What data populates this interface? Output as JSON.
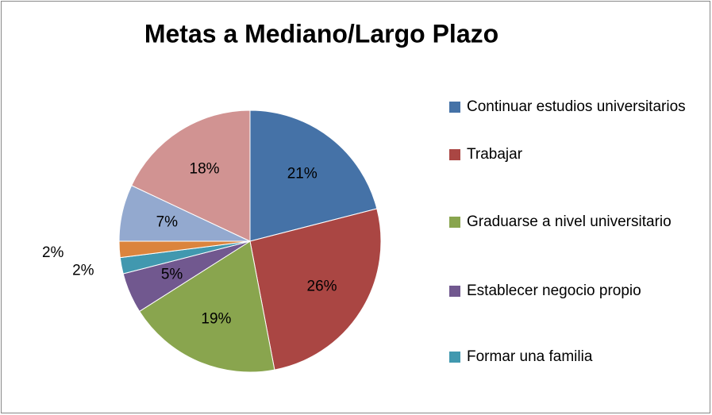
{
  "chart_data": {
    "type": "pie",
    "title": "Metas a Mediano/Largo Plazo",
    "categories": [
      "Continuar estudios universitarios",
      "Trabajar",
      "Graduarse a nivel universitario",
      "Establecer negocio propio",
      "Formar una familia",
      null,
      null,
      null
    ],
    "values": [
      21,
      26,
      19,
      5,
      2,
      2,
      7,
      18
    ],
    "value_labels": [
      "21%",
      "26%",
      "19%",
      "5%",
      "2%",
      "2%",
      "7%",
      "18%"
    ],
    "colors": [
      "#4572a7",
      "#aa4643",
      "#89a54e",
      "#71588f",
      "#4198af",
      "#db843d",
      "#93a9cf",
      "#d19392"
    ],
    "legend": "right"
  }
}
